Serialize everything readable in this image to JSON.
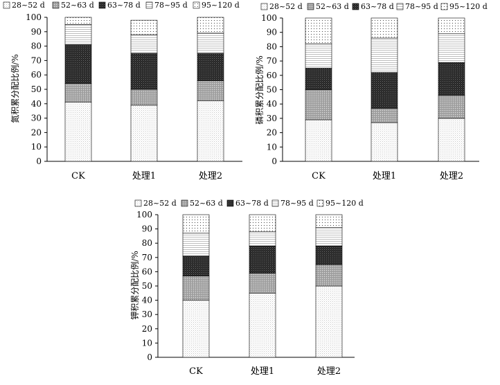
{
  "legend": [
    "28~52 d",
    "52~63 d",
    "63~78 d",
    "78~95 d",
    "95~120 d"
  ],
  "chart_data": [
    {
      "type": "bar",
      "stacked": true,
      "categories": [
        "CK",
        "处理1",
        "处理2"
      ],
      "ylabel": "氮积累分配比例/%",
      "ylim": [
        0,
        100
      ],
      "yticks": [
        0,
        10,
        20,
        30,
        40,
        50,
        60,
        70,
        80,
        90,
        100
      ],
      "series": [
        {
          "name": "28~52 d",
          "values": [
            41,
            39,
            42
          ]
        },
        {
          "name": "52~63 d",
          "values": [
            13,
            11,
            14
          ]
        },
        {
          "name": "63~78 d",
          "values": [
            27,
            25,
            19
          ]
        },
        {
          "name": "78~95 d",
          "values": [
            14,
            13,
            14
          ]
        },
        {
          "name": "95~120 d",
          "values": [
            6,
            10,
            12
          ]
        }
      ]
    },
    {
      "type": "bar",
      "stacked": true,
      "categories": [
        "CK",
        "处理1",
        "处理2"
      ],
      "ylabel": "磷积累分配比例/%",
      "ylim": [
        0,
        100
      ],
      "yticks": [
        0,
        10,
        20,
        30,
        40,
        50,
        60,
        70,
        80,
        90,
        100
      ],
      "series": [
        {
          "name": "28~52 d",
          "values": [
            29,
            27,
            30
          ]
        },
        {
          "name": "52~63 d",
          "values": [
            21,
            10,
            16
          ]
        },
        {
          "name": "63~78 d",
          "values": [
            15,
            25,
            23
          ]
        },
        {
          "name": "78~95 d",
          "values": [
            17,
            24,
            20
          ]
        },
        {
          "name": "95~120 d",
          "values": [
            18,
            14,
            11
          ]
        }
      ]
    },
    {
      "type": "bar",
      "stacked": true,
      "categories": [
        "CK",
        "处理1",
        "处理2"
      ],
      "ylabel": "钾积累分配比例/%",
      "ylim": [
        0,
        100
      ],
      "yticks": [
        0,
        10,
        20,
        30,
        40,
        50,
        60,
        70,
        80,
        90,
        100
      ],
      "series": [
        {
          "name": "28~52 d",
          "values": [
            40,
            45,
            50
          ]
        },
        {
          "name": "52~63 d",
          "values": [
            17,
            14,
            15
          ]
        },
        {
          "name": "63~78 d",
          "values": [
            14,
            19,
            13
          ]
        },
        {
          "name": "78~95 d",
          "values": [
            16,
            10,
            13
          ]
        },
        {
          "name": "95~120 d",
          "values": [
            13,
            12,
            10
          ]
        }
      ]
    }
  ]
}
